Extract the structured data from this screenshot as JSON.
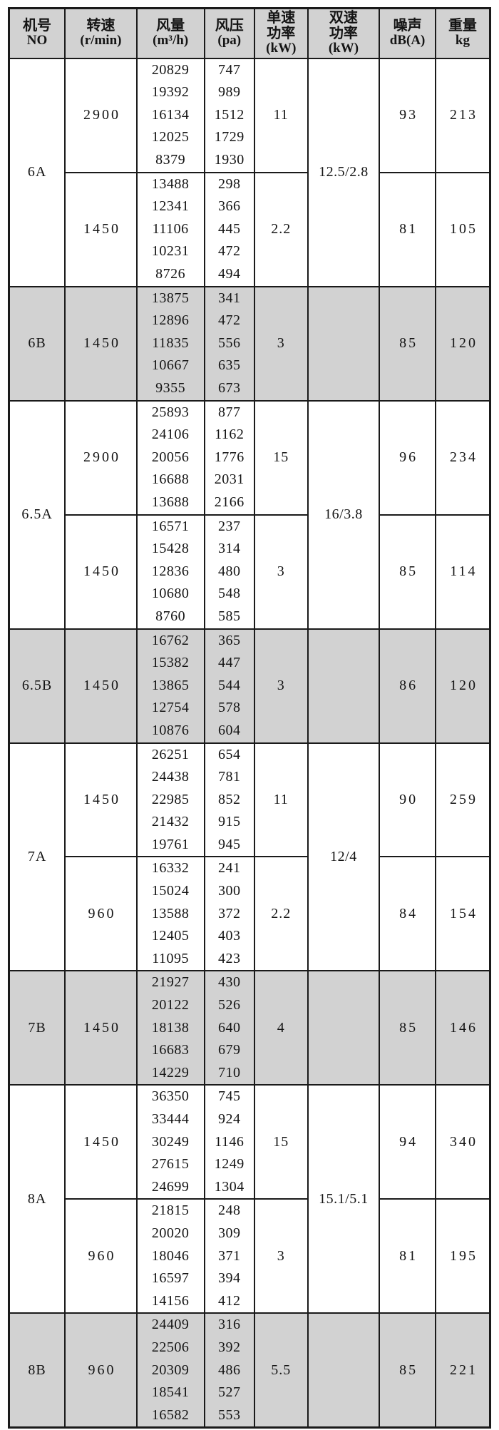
{
  "table": {
    "headers": [
      {
        "id": "model",
        "lines": [
          "机号",
          "NO"
        ]
      },
      {
        "id": "speed",
        "lines": [
          "转速",
          "(r/min)"
        ]
      },
      {
        "id": "flow",
        "lines": [
          "风量",
          "(m³/h)"
        ]
      },
      {
        "id": "pressure",
        "lines": [
          "风压",
          "(pa)"
        ]
      },
      {
        "id": "single-power",
        "lines": [
          "单速",
          "功率",
          "(kW)"
        ]
      },
      {
        "id": "dual-power",
        "lines": [
          "双速",
          "功率",
          "(kW)"
        ]
      },
      {
        "id": "noise",
        "lines": [
          "噪声",
          "dB(A)"
        ]
      },
      {
        "id": "weight",
        "lines": [
          "重量",
          "kg"
        ]
      }
    ],
    "sections": [
      {
        "model": "6A",
        "shaded": false,
        "dual_power": "12.5/2.8",
        "blocks": [
          {
            "speed": "2900",
            "flow": [
              "20829",
              "19392",
              "16134",
              "12025",
              "8379"
            ],
            "pressure": [
              "747",
              "989",
              "1512",
              "1729",
              "1930"
            ],
            "single_power": "11",
            "noise": "93",
            "weight": "213"
          },
          {
            "speed": "1450",
            "flow": [
              "13488",
              "12341",
              "11106",
              "10231",
              "8726"
            ],
            "pressure": [
              "298",
              "366",
              "445",
              "472",
              "494"
            ],
            "single_power": "2.2",
            "noise": "81",
            "weight": "105"
          }
        ]
      },
      {
        "model": "6B",
        "shaded": true,
        "dual_power": "",
        "blocks": [
          {
            "speed": "1450",
            "flow": [
              "13875",
              "12896",
              "11835",
              "10667",
              "9355"
            ],
            "pressure": [
              "341",
              "472",
              "556",
              "635",
              "673"
            ],
            "single_power": "3",
            "noise": "85",
            "weight": "120"
          }
        ]
      },
      {
        "model": "6.5A",
        "shaded": false,
        "dual_power": "16/3.8",
        "blocks": [
          {
            "speed": "2900",
            "flow": [
              "25893",
              "24106",
              "20056",
              "16688",
              "13688"
            ],
            "pressure": [
              "877",
              "1162",
              "1776",
              "2031",
              "2166"
            ],
            "single_power": "15",
            "noise": "96",
            "weight": "234"
          },
          {
            "speed": "1450",
            "flow": [
              "16571",
              "15428",
              "12836",
              "10680",
              "8760"
            ],
            "pressure": [
              "237",
              "314",
              "480",
              "548",
              "585"
            ],
            "single_power": "3",
            "noise": "85",
            "weight": "114"
          }
        ]
      },
      {
        "model": "6.5B",
        "shaded": true,
        "dual_power": "",
        "blocks": [
          {
            "speed": "1450",
            "flow": [
              "16762",
              "15382",
              "13865",
              "12754",
              "10876"
            ],
            "pressure": [
              "365",
              "447",
              "544",
              "578",
              "604"
            ],
            "single_power": "3",
            "noise": "86",
            "weight": "120"
          }
        ]
      },
      {
        "model": "7A",
        "shaded": false,
        "dual_power": "12/4",
        "blocks": [
          {
            "speed": "1450",
            "flow": [
              "26251",
              "24438",
              "22985",
              "21432",
              "19761"
            ],
            "pressure": [
              "654",
              "781",
              "852",
              "915",
              "945"
            ],
            "single_power": "11",
            "noise": "90",
            "weight": "259"
          },
          {
            "speed": "960",
            "flow": [
              "16332",
              "15024",
              "13588",
              "12405",
              "11095"
            ],
            "pressure": [
              "241",
              "300",
              "372",
              "403",
              "423"
            ],
            "single_power": "2.2",
            "noise": "84",
            "weight": "154"
          }
        ]
      },
      {
        "model": "7B",
        "shaded": true,
        "dual_power": "",
        "blocks": [
          {
            "speed": "1450",
            "flow": [
              "21927",
              "20122",
              "18138",
              "16683",
              "14229"
            ],
            "pressure": [
              "430",
              "526",
              "640",
              "679",
              "710"
            ],
            "single_power": "4",
            "noise": "85",
            "weight": "146"
          }
        ]
      },
      {
        "model": "8A",
        "shaded": false,
        "dual_power": "15.1/5.1",
        "blocks": [
          {
            "speed": "1450",
            "flow": [
              "36350",
              "33444",
              "30249",
              "27615",
              "24699"
            ],
            "pressure": [
              "745",
              "924",
              "1146",
              "1249",
              "1304"
            ],
            "single_power": "15",
            "noise": "94",
            "weight": "340"
          },
          {
            "speed": "960",
            "flow": [
              "21815",
              "20020",
              "18046",
              "16597",
              "14156"
            ],
            "pressure": [
              "248",
              "309",
              "371",
              "394",
              "412"
            ],
            "single_power": "3",
            "noise": "81",
            "weight": "195"
          }
        ]
      },
      {
        "model": "8B",
        "shaded": true,
        "dual_power": "",
        "blocks": [
          {
            "speed": "960",
            "flow": [
              "24409",
              "22506",
              "20309",
              "18541",
              "16582"
            ],
            "pressure": [
              "316",
              "392",
              "486",
              "527",
              "553"
            ],
            "single_power": "5.5",
            "noise": "85",
            "weight": "221"
          }
        ]
      }
    ]
  },
  "colors": {
    "shaded_row_bg": "#d2d2d2",
    "border": "#1a1a1a",
    "text": "#141414",
    "page_bg": "#ffffff"
  }
}
